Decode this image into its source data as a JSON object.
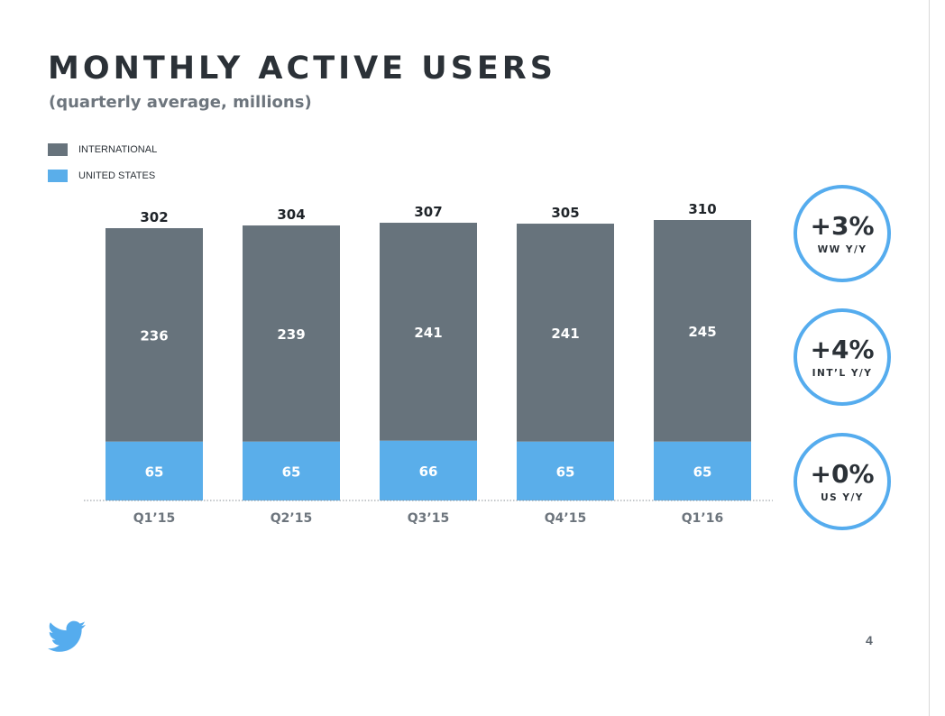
{
  "slide": {
    "title": "MONTHLY ACTIVE USERS",
    "subtitle": "(quarterly average, millions)",
    "page_number": "4",
    "logo_icon": "twitter-bird-icon"
  },
  "legend": [
    {
      "label": "INTERNATIONAL",
      "color": "#67737c"
    },
    {
      "label": "UNITED STATES",
      "color": "#5aaeea"
    }
  ],
  "growth": [
    {
      "value": "+3%",
      "label": "WW Y/Y"
    },
    {
      "value": "+4%",
      "label": "INT’L Y/Y"
    },
    {
      "value": "+0%",
      "label": "US Y/Y"
    }
  ],
  "chart_data": {
    "type": "bar",
    "stacked": true,
    "title": "MONTHLY ACTIVE USERS",
    "subtitle": "(quarterly average, millions)",
    "xlabel": "",
    "ylabel": "",
    "categories": [
      "Q1’15",
      "Q2’15",
      "Q3’15",
      "Q4’15",
      "Q1’16"
    ],
    "series": [
      {
        "name": "UNITED STATES",
        "color": "#5aaeea",
        "values": [
          65,
          65,
          66,
          65,
          65
        ]
      },
      {
        "name": "INTERNATIONAL",
        "color": "#67737c",
        "values": [
          236,
          239,
          241,
          241,
          245
        ]
      }
    ],
    "totals": [
      302,
      304,
      307,
      305,
      310
    ],
    "ylim": [
      0,
      310
    ],
    "grid": false,
    "legend_position": "top-left"
  }
}
